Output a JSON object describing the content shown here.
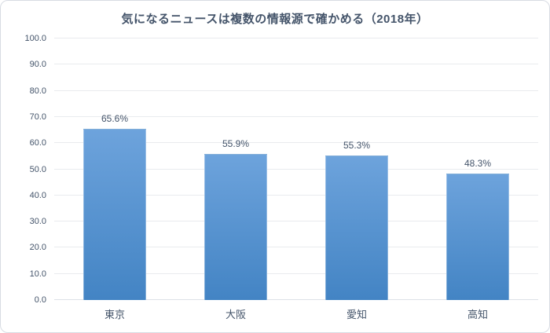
{
  "title": "気になるニュースは複数の情報源で確かめる（2018年）",
  "colors": {
    "bar_gradient_top": "#6da3dc",
    "bar_gradient_bottom": "#4384c4",
    "text": "#44546a",
    "gridline": "#e9ebee",
    "axis_line": "#dde1e7",
    "frame_border": "#d8dce3",
    "background": "#ffffff"
  },
  "chart_data": {
    "type": "bar",
    "title": "気になるニュースは複数の情報源で確かめる（2018年）",
    "categories": [
      "東京",
      "大阪",
      "愛知",
      "高知"
    ],
    "values": [
      65.6,
      55.9,
      55.3,
      48.3
    ],
    "data_labels": [
      "65.6%",
      "55.9%",
      "55.3%",
      "48.3%"
    ],
    "xlabel": "",
    "ylabel": "",
    "ylim": [
      0,
      100
    ],
    "ytick_step": 10,
    "ytick_labels": [
      "0.0",
      "10.0",
      "20.0",
      "30.0",
      "40.0",
      "50.0",
      "60.0",
      "70.0",
      "80.0",
      "90.0",
      "100.0"
    ],
    "grid": true,
    "legend_position": "none",
    "bar_label_position": "above"
  }
}
